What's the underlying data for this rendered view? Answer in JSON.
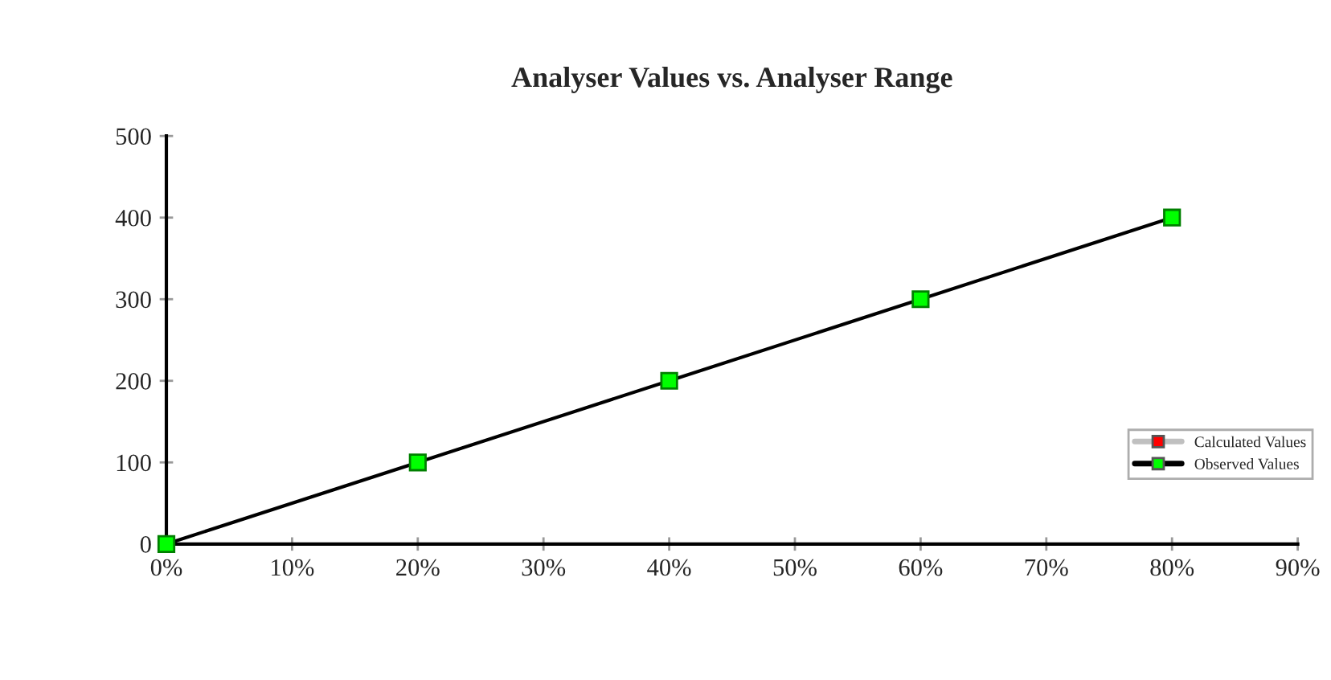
{
  "chart_data": {
    "type": "line",
    "title": "Analyser Values vs. Analyser Range",
    "x": [
      0,
      20,
      40,
      60,
      80
    ],
    "series": [
      {
        "name": "Calculated Values",
        "color": "#c0c0c0",
        "colors": [
          "#ff0000",
          "#ff0000",
          "#ff0000",
          "#ff0000",
          "#ff0000"
        ],
        "values": [
          null,
          null,
          null,
          null,
          null
        ]
      },
      {
        "name": "Observed Values",
        "color": "#000000",
        "colors": [
          "#00ff00",
          "#00ff00",
          "#00ff00",
          "#00ff00",
          "#00ff00"
        ],
        "values": [
          0,
          100,
          200,
          300,
          400
        ]
      }
    ],
    "xlim": [
      0,
      90
    ],
    "xticks": [
      {
        "value": 0,
        "label": "0%"
      },
      {
        "value": 10,
        "label": "10%"
      },
      {
        "value": 20,
        "label": "20%"
      },
      {
        "value": 30,
        "label": "30%"
      },
      {
        "value": 40,
        "label": "40%"
      },
      {
        "value": 50,
        "label": "50%"
      },
      {
        "value": 60,
        "label": "60%"
      },
      {
        "value": 70,
        "label": "70%"
      },
      {
        "value": 80,
        "label": "80%"
      },
      {
        "value": 90,
        "label": "90%"
      }
    ],
    "ylim": [
      0,
      500
    ],
    "yticks": [
      0,
      100,
      200,
      300,
      400,
      500
    ],
    "marker": "square",
    "line_style": "solid",
    "grid": false,
    "legend": "right"
  }
}
